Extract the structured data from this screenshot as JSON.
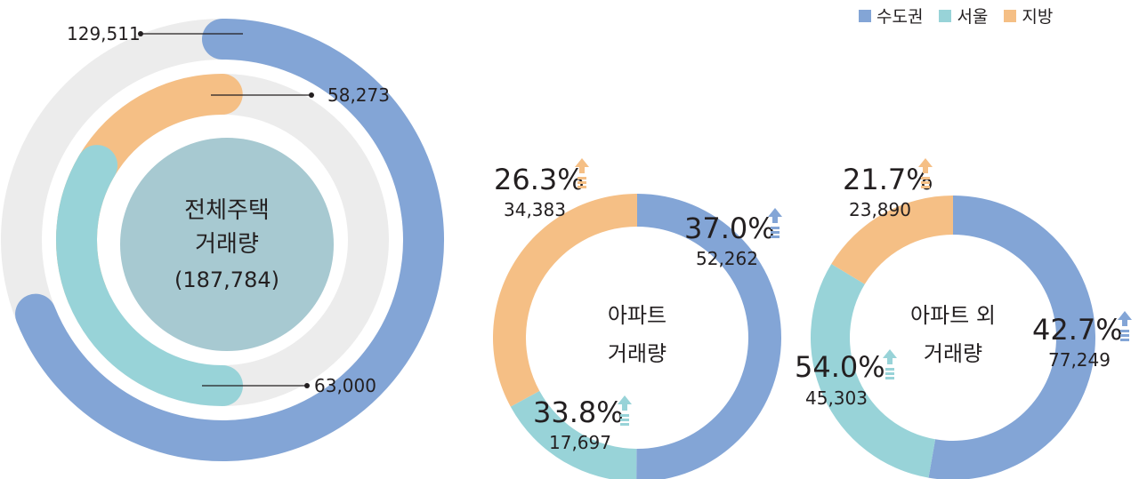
{
  "legend": [
    {
      "label": "수도권",
      "color": "#83a5d6"
    },
    {
      "label": "서울",
      "color": "#98d3d8"
    },
    {
      "label": "지방",
      "color": "#f5bf85"
    }
  ],
  "colors": {
    "capital": "#83a5d6",
    "seoul": "#98d3d8",
    "local": "#f5bf85",
    "track": "#ececec",
    "center": "#a7c9d1",
    "arrow_local": "#f5bf85",
    "arrow_capital": "#83a5d6",
    "arrow_seoul": "#98d3d8"
  },
  "chart_data": [
    {
      "type": "pie",
      "subtype": "radial-bar",
      "center_label_line1": "전체주택",
      "center_label_line2": "거래량",
      "center_label_line3": "(187,784)",
      "total": 187784,
      "series": [
        {
          "name": "수도권",
          "value": 129511,
          "label": "129,511"
        },
        {
          "name": "지방",
          "value": 58273,
          "label": "58,273"
        },
        {
          "name": "서울",
          "value": 63000,
          "label": "63,000"
        }
      ]
    },
    {
      "type": "pie",
      "subtype": "donut",
      "center_label_line1": "아파트",
      "center_label_line2": "거래량",
      "series": [
        {
          "name": "수도권",
          "value": 52262,
          "label": "52,262",
          "change": "37.0%",
          "direction": "up"
        },
        {
          "name": "서울",
          "value": 17697,
          "label": "17,697",
          "change": "33.8%",
          "direction": "up"
        },
        {
          "name": "지방",
          "value": 34383,
          "label": "34,383",
          "change": "26.3%",
          "direction": "up"
        }
      ]
    },
    {
      "type": "pie",
      "subtype": "donut",
      "center_label_line1": "아파트 외",
      "center_label_line2": "거래량",
      "series": [
        {
          "name": "수도권",
          "value": 77249,
          "label": "77,249",
          "change": "42.7%",
          "direction": "up"
        },
        {
          "name": "서울",
          "value": 45303,
          "label": "45,303",
          "change": "54.0%",
          "direction": "up"
        },
        {
          "name": "지방",
          "value": 23890,
          "label": "23,890",
          "change": "21.7%",
          "direction": "up"
        }
      ]
    }
  ]
}
